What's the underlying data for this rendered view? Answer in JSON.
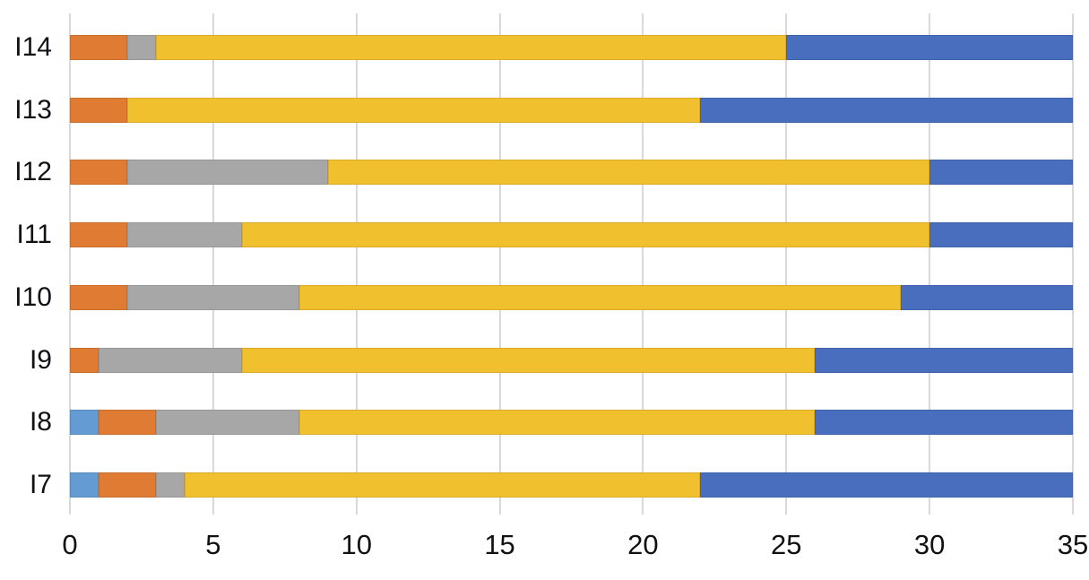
{
  "chart_data": {
    "type": "bar",
    "orientation": "horizontal",
    "stacked": true,
    "title": "",
    "xlabel": "",
    "ylabel": "",
    "categories": [
      "I14",
      "I13",
      "I12",
      "I11",
      "I10",
      "I9",
      "I8",
      "I7"
    ],
    "series": [
      {
        "name": "blue-light",
        "color": "#639BD2",
        "values": [
          0,
          0,
          0,
          0,
          0,
          0,
          1,
          1
        ]
      },
      {
        "name": "orange",
        "color": "#DF7B33",
        "values": [
          2,
          2,
          2,
          2,
          2,
          1,
          2,
          2
        ]
      },
      {
        "name": "gray",
        "color": "#A7A7A7",
        "values": [
          1,
          0,
          7,
          4,
          6,
          5,
          5,
          1
        ]
      },
      {
        "name": "yellow",
        "color": "#F1C02F",
        "values": [
          22,
          20,
          21,
          24,
          21,
          20,
          18,
          18
        ]
      },
      {
        "name": "blue-dark",
        "color": "#4A6EBE",
        "values": [
          10,
          13,
          5,
          5,
          6,
          9,
          9,
          13
        ]
      }
    ],
    "totals": [
      35,
      35,
      35,
      35,
      35,
      35,
      35,
      35
    ],
    "x_ticks": [
      0,
      5,
      10,
      15,
      20,
      25,
      30,
      35
    ],
    "xlim": [
      0,
      35
    ],
    "grid": true,
    "legend": false,
    "gridline_color": "#d9d9d9",
    "text_color": "#111111",
    "background_color": "#ffffff"
  }
}
